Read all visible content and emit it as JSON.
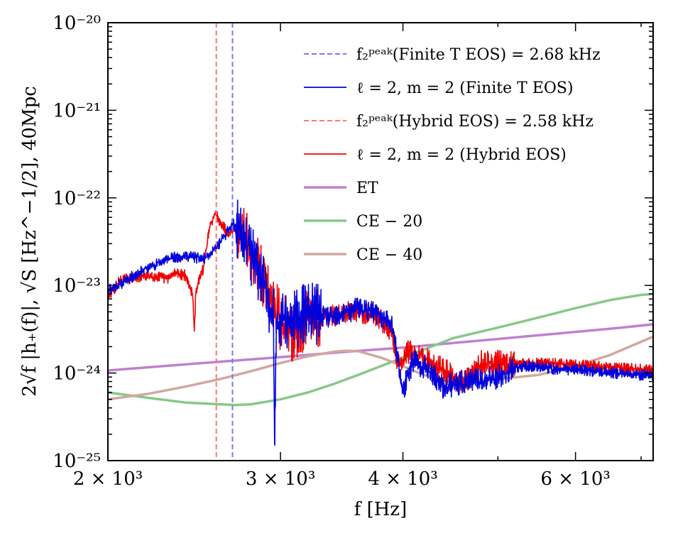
{
  "chart_data": {
    "type": "line",
    "xlabel": "f [Hz]",
    "ylabel": "2√f |h₊(f)|, √S [Hz^−1/2],  40Mpc",
    "xscale": "log",
    "yscale": "log",
    "xlim": [
      2000,
      7200
    ],
    "ylim": [
      1e-25,
      1e-20
    ],
    "x_ticks": [
      {
        "value": 2000,
        "label": "2 × 10³"
      },
      {
        "value": 3000,
        "label": "3 × 10³"
      },
      {
        "value": 4000,
        "label": "4 × 10³"
      },
      {
        "value": 6000,
        "label": "6 × 10³"
      }
    ],
    "y_ticks": [
      {
        "value": 1e-25,
        "label": "10⁻²⁵"
      },
      {
        "value": 1e-24,
        "label": "10⁻²⁴"
      },
      {
        "value": 1e-23,
        "label": "10⁻²³"
      },
      {
        "value": 1e-22,
        "label": "10⁻²²"
      },
      {
        "value": 1e-21,
        "label": "10⁻²¹"
      },
      {
        "value": 1e-20,
        "label": "10⁻²⁰"
      }
    ],
    "vlines": [
      {
        "name": "f2-peak-finite-t",
        "label": "f₂ᵖᵉᵃᵏ(Finite T EOS) = 2.68 kHz",
        "x": 2680,
        "color": "#7777ff"
      },
      {
        "name": "f2-peak-hybrid",
        "label": "f₂ᵖᵉᵃᵏ(Hybrid EOS) = 2.58 kHz",
        "x": 2580,
        "color": "#ff7777"
      }
    ],
    "series": [
      {
        "name": "ℓ = 2, m = 2 (Finite T EOS)",
        "color": "#0000dd",
        "width": 1.6,
        "noisy": true,
        "noise_seed": 11,
        "x": [
          2000,
          2050,
          2100,
          2200,
          2300,
          2400,
          2450,
          2500,
          2550,
          2600,
          2650,
          2680,
          2700,
          2750,
          2800,
          2850,
          2900,
          2950,
          2960,
          2970,
          3000,
          3050,
          3100,
          3150,
          3200,
          3300,
          3400,
          3500,
          3600,
          3700,
          3800,
          3900,
          3950,
          4000,
          4050,
          4100,
          4200,
          4300,
          4400,
          4500,
          4700,
          4900,
          5100,
          5300,
          5500,
          5700,
          6000,
          6300,
          6600,
          6900,
          7200
        ],
        "y": [
          9e-24,
          1e-23,
          1.2e-23,
          1.6e-23,
          2e-23,
          2.2e-23,
          2.1e-23,
          2e-23,
          2.3e-23,
          3e-23,
          4.2e-23,
          5.2e-23,
          4.5e-23,
          3.5e-23,
          2.2e-23,
          1.5e-23,
          8e-24,
          5e-24,
          1.5e-25,
          4e-24,
          4.5e-24,
          3.5e-24,
          4e-24,
          4.5e-24,
          5e-24,
          4.5e-24,
          4.2e-24,
          5e-24,
          5.5e-24,
          5.2e-24,
          4.5e-24,
          3.5e-24,
          1.5e-24,
          6e-25,
          1e-24,
          1.4e-24,
          1.2e-24,
          9e-25,
          7e-25,
          7.5e-25,
          8e-25,
          8.5e-25,
          1e-24,
          1.2e-24,
          1.2e-24,
          1.1e-24,
          1.1e-24,
          1.05e-24,
          1e-24,
          9.5e-25,
          9.5e-25
        ]
      },
      {
        "name": "ℓ = 2, m = 2 (Hybrid EOS)",
        "color": "#ee0000",
        "width": 1.6,
        "noisy": true,
        "noise_seed": 29,
        "x": [
          2000,
          2050,
          2100,
          2200,
          2300,
          2350,
          2400,
          2440,
          2450,
          2460,
          2500,
          2540,
          2560,
          2580,
          2600,
          2650,
          2700,
          2750,
          2800,
          2850,
          2900,
          2950,
          3000,
          3050,
          3100,
          3150,
          3200,
          3300,
          3400,
          3500,
          3600,
          3700,
          3800,
          3900,
          3950,
          4000,
          4050,
          4100,
          4200,
          4300,
          4400,
          4500,
          4600,
          4700,
          4800,
          5000,
          5200,
          5500,
          6000,
          6500,
          7200
        ],
        "y": [
          7e-24,
          1.1e-23,
          1.2e-23,
          1.3e-23,
          1.2e-23,
          1.4e-23,
          1.3e-23,
          8e-24,
          3e-24,
          9e-24,
          1.5e-23,
          4.5e-23,
          6e-23,
          6.5e-23,
          5.5e-23,
          4e-23,
          4.5e-23,
          3.5e-23,
          2.5e-23,
          1.5e-23,
          1e-23,
          6e-24,
          4e-24,
          3.2e-24,
          2.5e-24,
          3.5e-24,
          4e-24,
          4.5e-24,
          4.5e-24,
          5e-24,
          5e-24,
          4.8e-24,
          4e-24,
          2.8e-24,
          1.3e-24,
          1.4e-24,
          1.8e-24,
          1.6e-24,
          1.5e-24,
          1.2e-24,
          1.1e-24,
          9e-25,
          8e-25,
          9e-25,
          1.3e-24,
          1.35e-24,
          1.3e-24,
          1.3e-24,
          1.25e-24,
          1.15e-24,
          1.1e-24
        ]
      },
      {
        "name": "ET",
        "color": "#c080d0",
        "width": 3.5,
        "noisy": false,
        "x": [
          2000,
          2500,
          3000,
          3500,
          4000,
          4500,
          5000,
          5500,
          6000,
          6500,
          7200
        ],
        "y": [
          1.07e-24,
          1.3e-24,
          1.52e-24,
          1.75e-24,
          1.95e-24,
          2.2e-24,
          2.45e-24,
          2.7e-24,
          2.95e-24,
          3.2e-24,
          3.6e-24
        ]
      },
      {
        "name": "CE − 20",
        "color": "#88c888",
        "width": 3.5,
        "noisy": false,
        "x": [
          2000,
          2200,
          2400,
          2600,
          2700,
          2800,
          3000,
          3200,
          3400,
          3600,
          3800,
          4000,
          4200,
          4500,
          5000,
          5500,
          6000,
          6500,
          7000,
          7200
        ],
        "y": [
          6e-25,
          5.2e-25,
          4.6e-25,
          4.4e-25,
          4.3e-25,
          4.4e-25,
          5e-25,
          6e-25,
          7.5e-25,
          9.5e-25,
          1.2e-24,
          1.5e-24,
          1.85e-24,
          2.5e-24,
          3.3e-24,
          4.3e-24,
          5.5e-24,
          6.8e-24,
          7.8e-24,
          8e-24
        ]
      },
      {
        "name": "CE − 40",
        "color": "#d0a8a0",
        "width": 3.5,
        "noisy": false,
        "x": [
          2000,
          2200,
          2400,
          2600,
          2800,
          3000,
          3200,
          3400,
          3500,
          3600,
          3800,
          4000,
          4200,
          4400,
          4500,
          4600,
          4800,
          5000,
          5500,
          6000,
          6500,
          7200
        ],
        "y": [
          5e-25,
          5.8e-25,
          7e-25,
          8.5e-25,
          1.05e-24,
          1.3e-24,
          1.55e-24,
          1.75e-24,
          1.8e-24,
          1.78e-24,
          1.5e-24,
          1.2e-24,
          9.5e-25,
          8.2e-25,
          8e-25,
          8e-25,
          8.2e-25,
          8.5e-25,
          9.5e-25,
          1.2e-24,
          1.6e-24,
          2.6e-24
        ]
      }
    ],
    "legend": {
      "placement": "top-right",
      "entries": [
        {
          "label": "f₂ᵖᵉᵃᵏ(Finite T EOS) = 2.68 kHz",
          "color": "#7777ff",
          "style": "dashed"
        },
        {
          "label": "ℓ = 2, m = 2 (Finite T EOS)",
          "color": "#0000dd",
          "style": "solid"
        },
        {
          "label": "f₂ᵖᵉᵃᵏ(Hybrid EOS) = 2.58 kHz",
          "color": "#ff7777",
          "style": "dashed"
        },
        {
          "label": "ℓ = 2, m = 2 (Hybrid EOS)",
          "color": "#ee0000",
          "style": "solid"
        },
        {
          "label": "ET",
          "color": "#c080d0",
          "style": "thick"
        },
        {
          "label": "CE − 20",
          "color": "#88c888",
          "style": "thick"
        },
        {
          "label": "CE − 40",
          "color": "#d0a8a0",
          "style": "thick"
        }
      ]
    }
  }
}
